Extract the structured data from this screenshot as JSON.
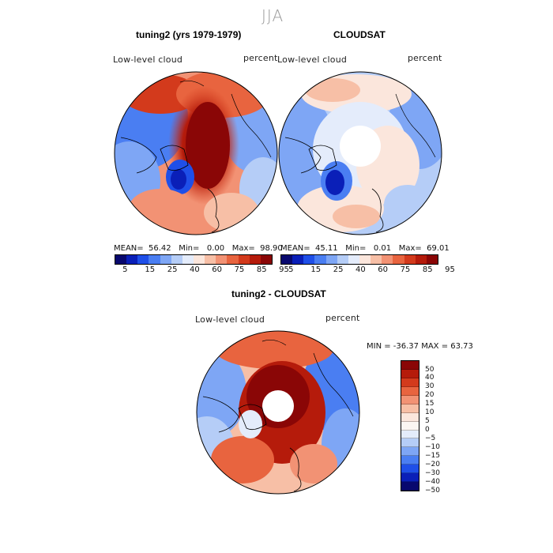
{
  "season": "JJA",
  "panels": [
    {
      "title": "tuning2 (yrs 1979-1979)",
      "variable": "Low-level cloud",
      "units": "percent",
      "stats": {
        "mean_label": "MEAN=",
        "mean": "56.42",
        "min_label": "Min=",
        "min": "0.00",
        "max_label": "Max=",
        "max": "98.90"
      }
    },
    {
      "title": "CLOUDSAT",
      "variable": "Low-level cloud",
      "units": "percent",
      "stats": {
        "mean_label": "MEAN=",
        "mean": "45.11",
        "min_label": "Min=",
        "min": "0.01",
        "max_label": "Max=",
        "max": "69.01"
      }
    }
  ],
  "abs_colorbar": {
    "ticks": [
      "5",
      "15",
      "25",
      "40",
      "60",
      "75",
      "85",
      "95"
    ],
    "colors": [
      "#08086e",
      "#0a1fb8",
      "#1f4fe8",
      "#4a7ef2",
      "#7ea6f5",
      "#b5cdf7",
      "#e4ecfb",
      "#fbe6dc",
      "#f7bfa6",
      "#f29274",
      "#e8643f",
      "#d33a1c",
      "#b51b0b",
      "#8a0606"
    ]
  },
  "diff_panel": {
    "title": "tuning2 - CLOUDSAT",
    "variable": "Low-level cloud",
    "units": "percent",
    "minmax": "MIN = -36.37 MAX =  63.73",
    "ticks": [
      "50",
      "40",
      "30",
      "20",
      "15",
      "10",
      "5",
      "0",
      "−5",
      "−10",
      "−15",
      "−20",
      "−30",
      "−40",
      "−50"
    ],
    "colors": [
      "#8a0606",
      "#b51b0b",
      "#d33a1c",
      "#e8643f",
      "#f29274",
      "#f7bfa6",
      "#fbe6dc",
      "#fbf6f2",
      "#e4ecfb",
      "#b5cdf7",
      "#7ea6f5",
      "#4a7ef2",
      "#1f4fe8",
      "#0a1fb8",
      "#08086e"
    ]
  }
}
